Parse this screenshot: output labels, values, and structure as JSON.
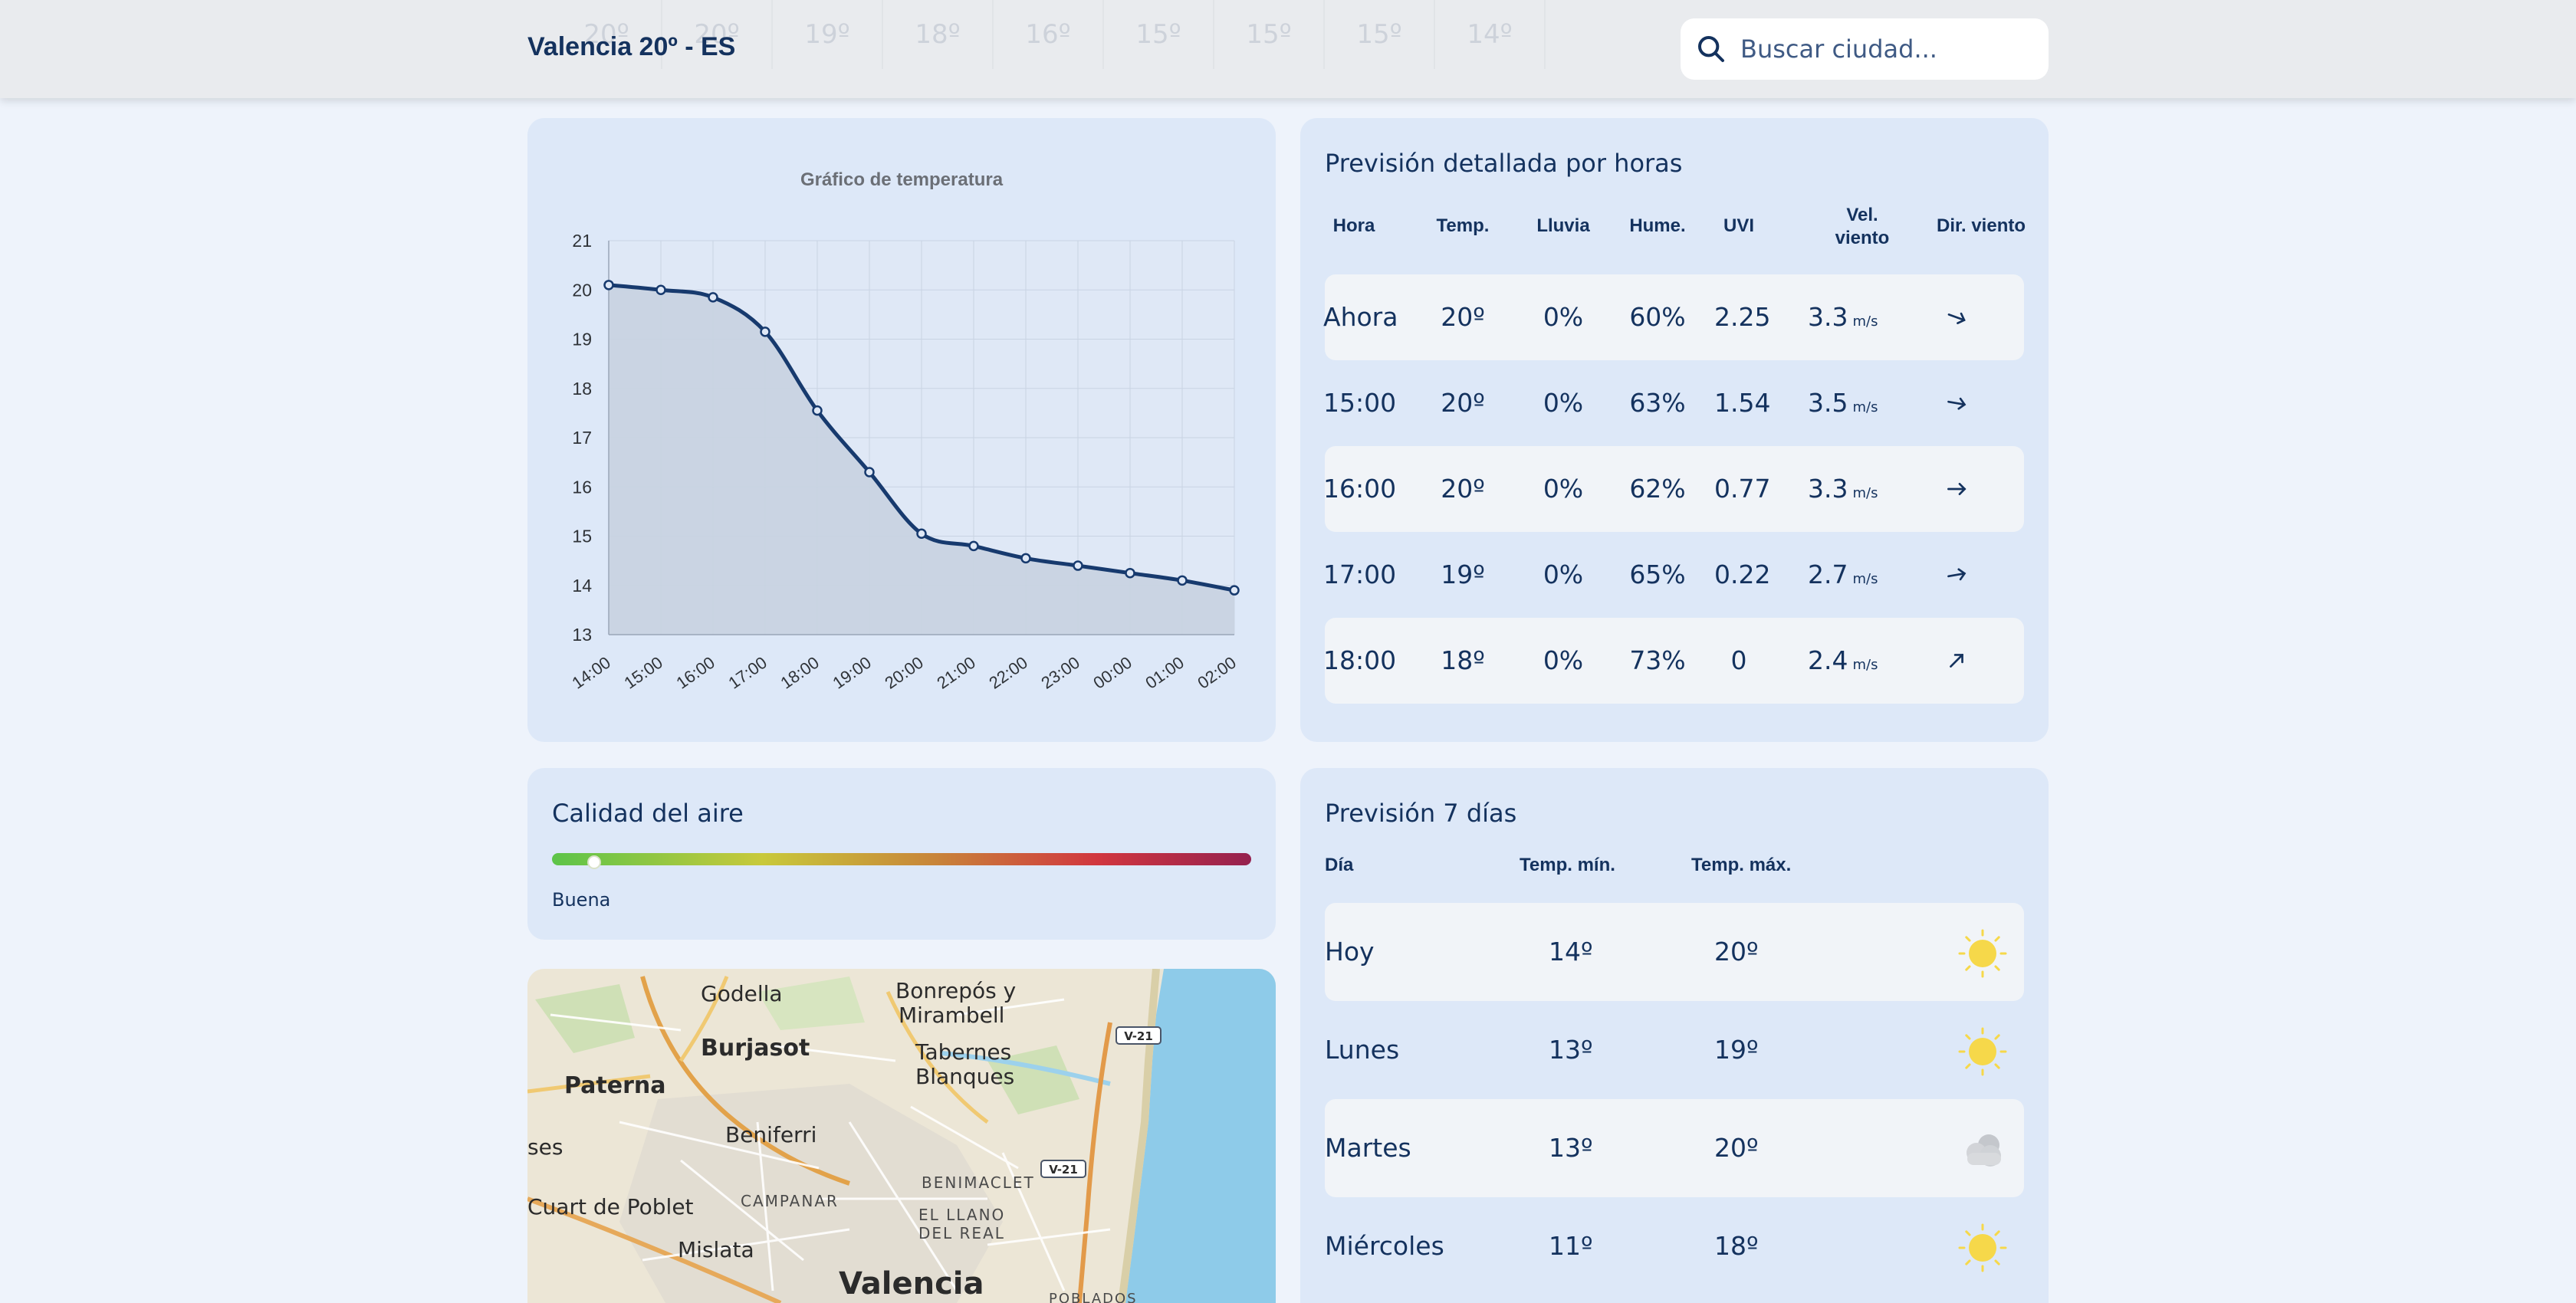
{
  "header": {
    "title": "Valencia 20º - ES",
    "strip_temps": [
      "20º",
      "20º",
      "19º",
      "18º",
      "16º",
      "15º",
      "15º",
      "15º",
      "14º"
    ],
    "search_placeholder": "Buscar ciudad..."
  },
  "chart_data": {
    "type": "line",
    "title": "Gráfico de temperatura",
    "x": [
      "14:00",
      "15:00",
      "16:00",
      "17:00",
      "18:00",
      "19:00",
      "20:00",
      "21:00",
      "22:00",
      "23:00",
      "00:00",
      "01:00",
      "02:00"
    ],
    "values": [
      20.1,
      20.0,
      19.85,
      19.15,
      17.55,
      16.3,
      15.05,
      14.8,
      14.55,
      14.4,
      14.25,
      14.1,
      13.9
    ],
    "ylim": [
      13,
      21
    ],
    "yticks": [
      13,
      14,
      15,
      16,
      17,
      18,
      19,
      20,
      21
    ],
    "grid": true,
    "line_color": "#173a6e",
    "fill_color": "#c8d3e2"
  },
  "hourly": {
    "title": "Previsión detallada por horas",
    "headers": [
      "Hora",
      "Temp.",
      "Lluvia",
      "Hume.",
      "UVI",
      "Vel. viento",
      "Dir. viento"
    ],
    "wind_unit": "m/s",
    "rows": [
      {
        "hour": "Ahora",
        "temp": "20º",
        "rain": "0%",
        "humidity": "60%",
        "uvi": "2.25",
        "wind": "3.3",
        "wind_dir_deg": 110
      },
      {
        "hour": "15:00",
        "temp": "20º",
        "rain": "0%",
        "humidity": "63%",
        "uvi": "1.54",
        "wind": "3.5",
        "wind_dir_deg": 100
      },
      {
        "hour": "16:00",
        "temp": "20º",
        "rain": "0%",
        "humidity": "62%",
        "uvi": "0.77",
        "wind": "3.3",
        "wind_dir_deg": 90
      },
      {
        "hour": "17:00",
        "temp": "19º",
        "rain": "0%",
        "humidity": "65%",
        "uvi": "0.22",
        "wind": "2.7",
        "wind_dir_deg": 80
      },
      {
        "hour": "18:00",
        "temp": "18º",
        "rain": "0%",
        "humidity": "73%",
        "uvi": "0",
        "wind": "2.4",
        "wind_dir_deg": 45
      }
    ]
  },
  "air_quality": {
    "title": "Calidad del aire",
    "level_fraction": 0.06,
    "label": "Buena"
  },
  "map": {
    "labels": [
      "Godella",
      "Bonrepós y",
      "Mirambell",
      "Burjasot",
      "Tabernes",
      "Blanques",
      "Paterna",
      "Beniferri",
      "ses",
      "BENIMACLET",
      "Cuart de Poblet",
      "CAMPANAR",
      "EL LLANO",
      "DEL REAL",
      "Mislata",
      "Valencia",
      "POBLADOS",
      "V-21",
      "V-21"
    ]
  },
  "daily": {
    "title": "Previsión 7 días",
    "headers": [
      "Día",
      "Temp. mín.",
      "Temp. máx."
    ],
    "rows": [
      {
        "day": "Hoy",
        "min": "14º",
        "max": "20º",
        "icon": "sun-icon"
      },
      {
        "day": "Lunes",
        "min": "13º",
        "max": "19º",
        "icon": "sun-icon"
      },
      {
        "day": "Martes",
        "min": "13º",
        "max": "20º",
        "icon": "cloud-icon"
      },
      {
        "day": "Miércoles",
        "min": "11º",
        "max": "18º",
        "icon": "sun-icon"
      }
    ]
  }
}
